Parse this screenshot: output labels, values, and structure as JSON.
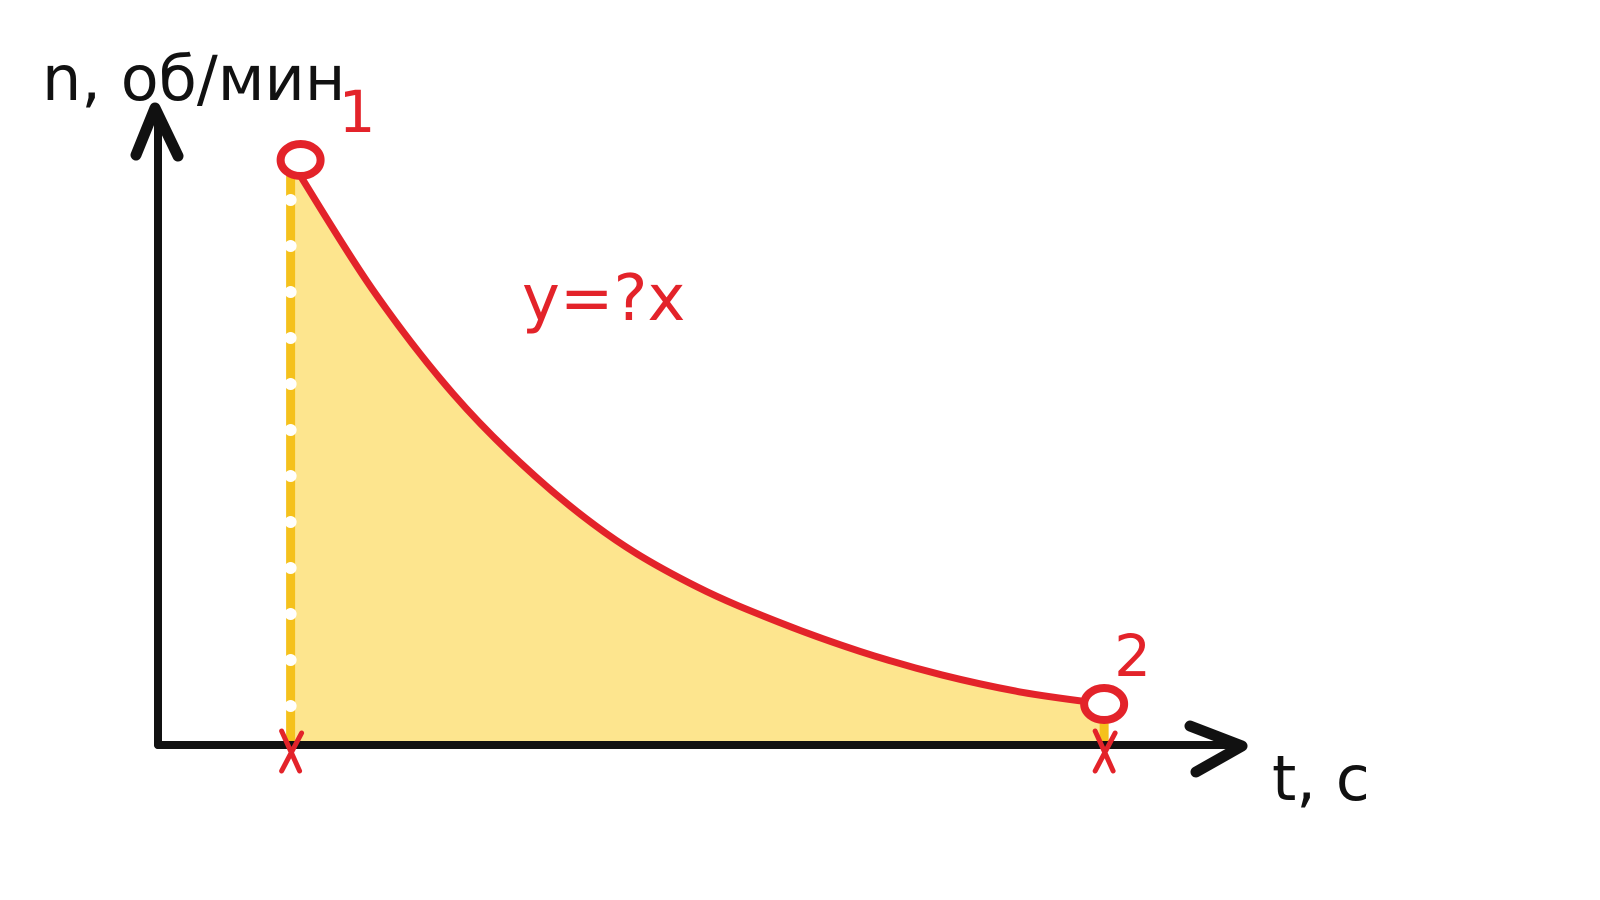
{
  "chart_data": {
    "type": "area",
    "title": "",
    "xlabel": "t, c",
    "ylabel": "n, об/мин",
    "series": [
      {
        "x": [
          0.0,
          0.1,
          0.2,
          0.3,
          0.4,
          0.5,
          0.6,
          0.7,
          0.8,
          0.9,
          1.0
        ],
        "y": [
          1.0,
          0.78,
          0.6,
          0.46,
          0.35,
          0.27,
          0.21,
          0.16,
          0.12,
          0.09,
          0.07
        ]
      }
    ],
    "points": [
      {
        "label": "1",
        "x": 0.0,
        "y": 1.0
      },
      {
        "label": "2",
        "x": 1.0,
        "y": 0.07
      }
    ],
    "annotation": "y=?x",
    "xlim": [
      -0.163,
      1.167
    ],
    "ylim": [
      0.0,
      1.0
    ],
    "grid": false,
    "colors": {
      "axis": "#111111",
      "curve": "#e3232a",
      "fill": "#fde58e",
      "dashed_line": "#f5c11c",
      "markers": "#e3232a"
    }
  }
}
